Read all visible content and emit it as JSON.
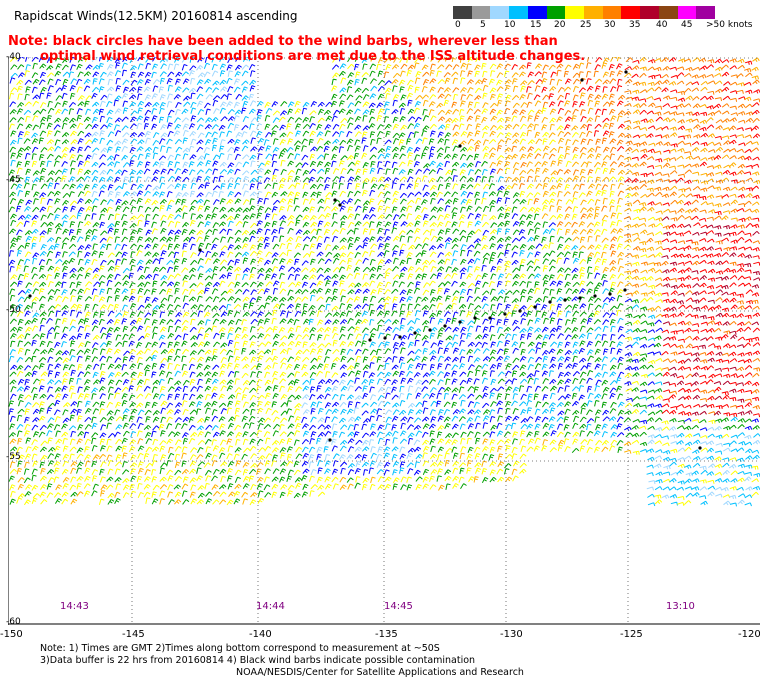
{
  "title": "Rapidscat Winds(12.5KM) 20160814 ascending",
  "notice": {
    "line1": "Note: black circles have been added to the wind barbs, wherever less than",
    "line2": "optimal wind retrieval conditions are met due to the ISS altitude changes."
  },
  "legend": {
    "labels": [
      "0",
      "5",
      "10",
      "15",
      "20",
      "25",
      "30",
      "35",
      "40",
      "45",
      ">50 knots"
    ],
    "colors": [
      "#404040",
      "#9a9a9a",
      "#a0d8ff",
      "#00c0ff",
      "#0000ff",
      "#00a000",
      "#ffff00",
      "#ffb000",
      "#ff8000",
      "#ff0000",
      "#b0002a",
      "#8b4513",
      "#ff00ff",
      "#a000a0"
    ]
  },
  "axes": {
    "lat_labels": [
      "-40",
      "-45",
      "-50",
      "-55",
      "-60"
    ],
    "lon_labels": [
      "-150",
      "-145",
      "-140",
      "-135",
      "-130",
      "-125",
      "-120"
    ]
  },
  "pass_times": [
    "14:43",
    "14:44",
    "14:45",
    "13:10"
  ],
  "footer": {
    "note_line1": "Note: 1) Times are GMT 2)Times along bottom correspond to measurement at ~50S",
    "note_line2": "3)Data buffer is 22 hrs from 20160814 4) Black wind barbs indicate possible contamination",
    "credit": "NOAA/NESDIS/Center for Satellite Applications and Research"
  }
}
